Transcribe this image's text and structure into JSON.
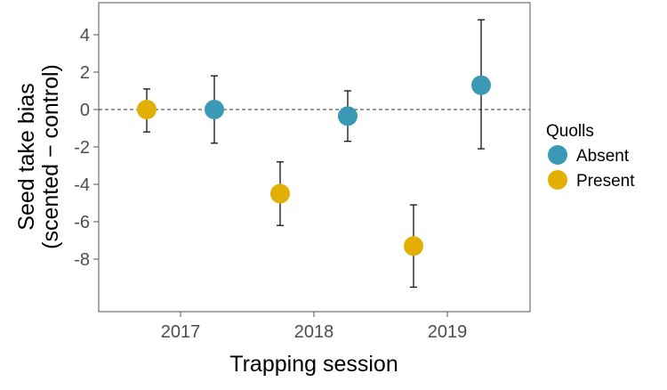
{
  "chart_data": {
    "type": "scatter",
    "title": "",
    "xlabel": "Trapping session",
    "ylabel_lines": [
      "Seed take bias",
      "(scented − control)"
    ],
    "x_categories": [
      "2017",
      "2018",
      "2019"
    ],
    "yticks": [
      "4",
      "2",
      "0",
      "-2",
      "-4",
      "-6",
      "-8"
    ],
    "ylim": [
      -10.8,
      5.6
    ],
    "reference_line": {
      "y": 0,
      "style": "dashed"
    },
    "grid": false,
    "legend": {
      "title": "Quolls",
      "placement": "right",
      "entries": [
        {
          "label": "Absent",
          "color": "#3a9ab6"
        },
        {
          "label": "Present",
          "color": "#e2b005"
        }
      ]
    },
    "series": [
      {
        "name": "Present",
        "color": "#e2b005",
        "points": [
          {
            "session": "2017",
            "y": 0.0,
            "lower": -1.2,
            "upper": 1.1
          },
          {
            "session": "2018",
            "y": -4.5,
            "lower": -6.2,
            "upper": -2.8
          },
          {
            "session": "2019",
            "y": -7.3,
            "lower": -9.5,
            "upper": -5.1
          }
        ]
      },
      {
        "name": "Absent",
        "color": "#3a9ab6",
        "points": [
          {
            "session": "2017",
            "y": 0.0,
            "lower": -1.8,
            "upper": 1.8
          },
          {
            "session": "2018",
            "y": -0.35,
            "lower": -1.7,
            "upper": 1.0
          },
          {
            "session": "2019",
            "y": 1.3,
            "lower": -2.1,
            "upper": 4.8
          }
        ]
      }
    ]
  }
}
